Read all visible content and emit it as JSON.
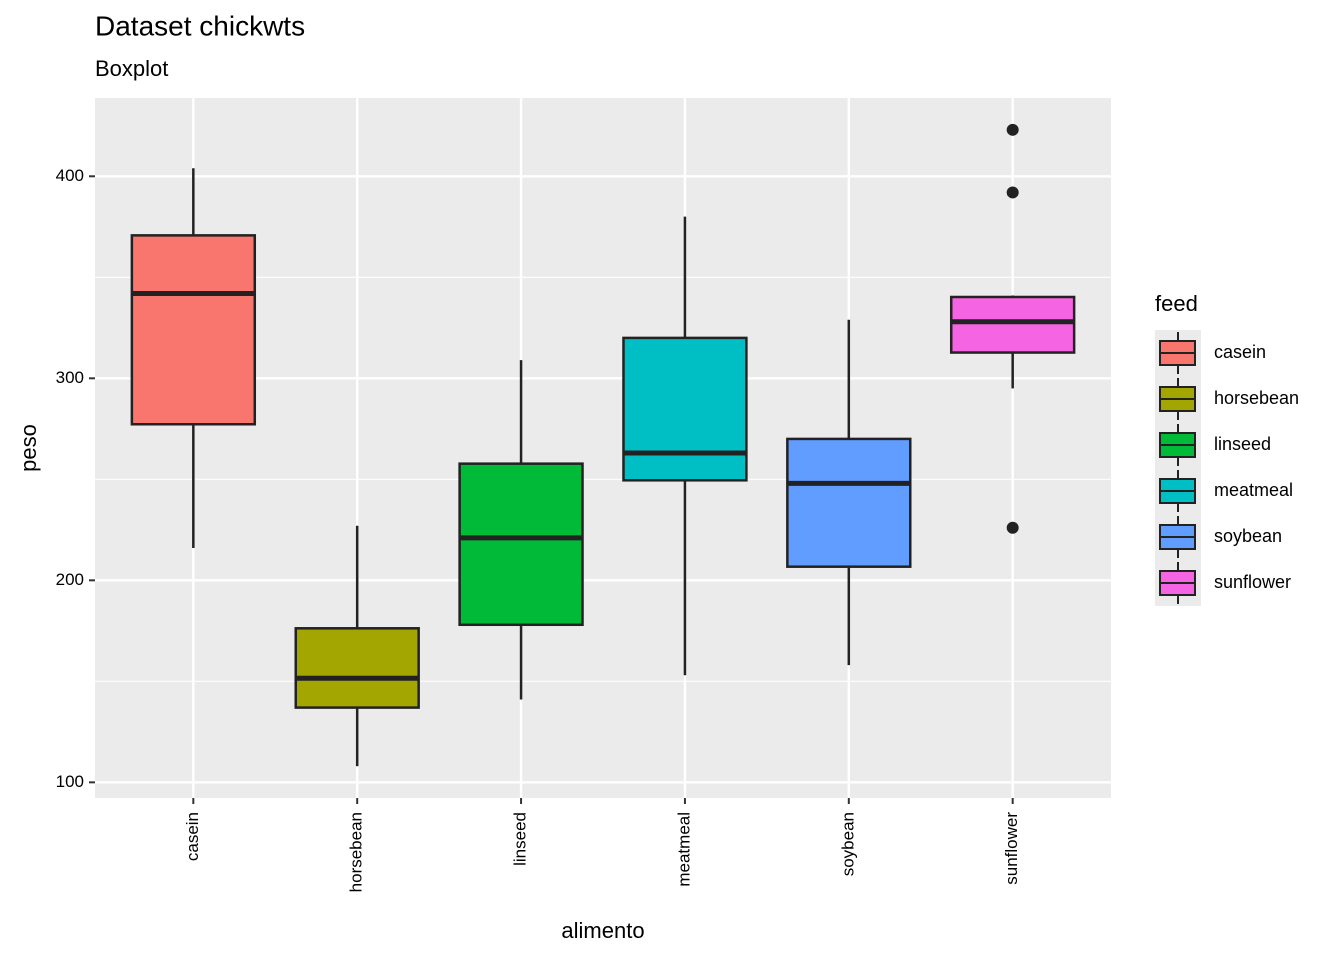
{
  "chart_data": {
    "type": "boxplot",
    "title": "Dataset chickwts",
    "subtitle": "Boxplot",
    "x_label": "alimento",
    "y_label": "peso",
    "categories": [
      "casein",
      "horsebean",
      "linseed",
      "meatmeal",
      "soybean",
      "sunflower"
    ],
    "legend_title": "feed",
    "series": [
      {
        "name": "casein",
        "color": "#F8766D",
        "min": 216,
        "q1": 277.25,
        "median": 342,
        "q3": 370.75,
        "max": 404,
        "outliers": []
      },
      {
        "name": "horsebean",
        "color": "#A3A500",
        "min": 108,
        "q1": 137,
        "median": 151.5,
        "q3": 176.25,
        "max": 227,
        "outliers": []
      },
      {
        "name": "linseed",
        "color": "#00BA38",
        "min": 141,
        "q1": 178,
        "median": 221,
        "q3": 257.75,
        "max": 309,
        "outliers": []
      },
      {
        "name": "meatmeal",
        "color": "#00BFC4",
        "min": 153,
        "q1": 249.5,
        "median": 263,
        "q3": 320,
        "max": 380,
        "outliers": []
      },
      {
        "name": "soybean",
        "color": "#619CFF",
        "min": 158,
        "q1": 206.75,
        "median": 248,
        "q3": 270,
        "max": 329,
        "outliers": []
      },
      {
        "name": "sunflower",
        "color": "#F564E3",
        "min": 295,
        "q1": 312.75,
        "median": 328,
        "q3": 340.25,
        "max": 341,
        "outliers": [
          423,
          392,
          226
        ]
      }
    ],
    "ylim": [
      92.25,
      438.75
    ],
    "yticks": [
      100,
      200,
      300,
      400
    ],
    "y_minor_ticks": [
      150,
      250,
      350
    ],
    "grid": true
  }
}
